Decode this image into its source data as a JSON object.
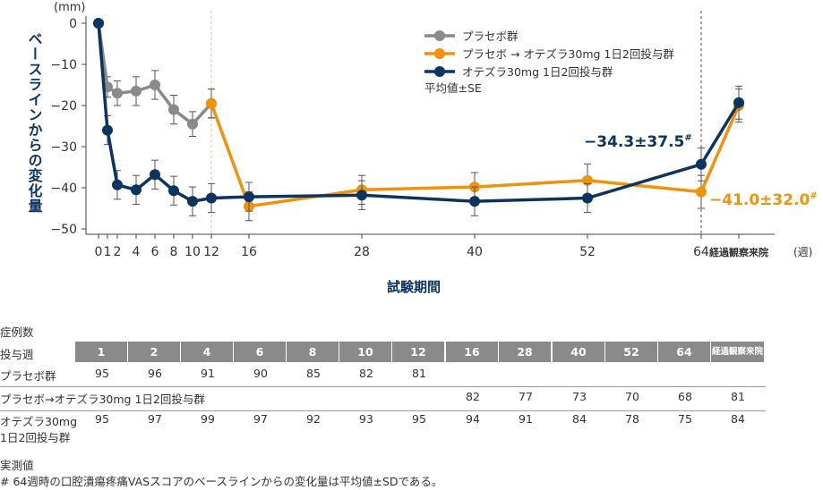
{
  "chart_data": {
    "type": "line",
    "y_unit": "(mm)",
    "x_unit": "(週)",
    "ylabel": "ベースラインからの変化量",
    "xlabel": "試験期間",
    "ylim": [
      -50,
      0
    ],
    "yticks": [
      "0",
      "−10",
      "−20",
      "−30",
      "−40",
      "−50"
    ],
    "xticks": [
      "0",
      "1",
      "2",
      "4",
      "6",
      "8",
      "10",
      "12",
      "16",
      "28",
      "40",
      "52",
      "64",
      "経過観察来院"
    ],
    "legend": {
      "placement": "top-right",
      "note": "平均値±SE"
    },
    "series": [
      {
        "name": "プラセボ群",
        "color": "#8a8a8a",
        "x": [
          "0",
          "1",
          "2",
          "4",
          "6",
          "8",
          "10",
          "12"
        ],
        "y": [
          0,
          -15.5,
          -17,
          -16.5,
          -15,
          -21,
          -24.5,
          -19.5
        ],
        "err": [
          0,
          2.5,
          3,
          3.5,
          3.5,
          3.5,
          3,
          3.5
        ]
      },
      {
        "name": "プラセボ → オテズラ30mg 1日2回投与群",
        "color": "#f0920a",
        "x": [
          "12",
          "16",
          "28",
          "40",
          "52",
          "64",
          "経過観察来院"
        ],
        "y": [
          -19.5,
          -44.5,
          -40.5,
          -39.8,
          -38.2,
          -41,
          -20
        ],
        "err": [
          3.5,
          3.5,
          3.5,
          3.5,
          4,
          4,
          4
        ]
      },
      {
        "name": "オテズラ30mg 1日2回投与群",
        "color": "#0d3460",
        "x": [
          "0",
          "1",
          "2",
          "4",
          "6",
          "8",
          "10",
          "12",
          "16",
          "28",
          "40",
          "52",
          "64",
          "経過観察来院"
        ],
        "y": [
          0,
          -26,
          -39.3,
          -40.5,
          -36.8,
          -40.7,
          -43.3,
          -42.5,
          -42.2,
          -41.8,
          -43.3,
          -42.5,
          -34.3,
          -19.3
        ],
        "err": [
          0,
          3.5,
          3.5,
          3.5,
          3.5,
          3.5,
          3.5,
          3.5,
          3.5,
          3.5,
          3.5,
          3.5,
          4,
          4
        ]
      }
    ],
    "annotations": [
      {
        "text": "−34.3±37.5",
        "sup": "#",
        "series": "オテズラ30mg 1日2回投与群"
      },
      {
        "text": "−41.0±32.0",
        "sup": "#",
        "series": "プラセボ → オテズラ30mg 1日2回投与群"
      }
    ]
  },
  "table": {
    "title": "症例数",
    "header_label": "投与週",
    "weeks": [
      "1",
      "2",
      "4",
      "6",
      "8",
      "10",
      "12",
      "16",
      "28",
      "40",
      "52",
      "64",
      "経過観察来院"
    ],
    "rows": [
      {
        "label": "プラセボ群",
        "values": [
          "95",
          "96",
          "91",
          "90",
          "85",
          "82",
          "81",
          "",
          "",
          "",
          "",
          "",
          ""
        ]
      },
      {
        "label": "プラセボ→オテズラ30mg 1日2回投与群",
        "values": [
          "",
          "",
          "",
          "",
          "",
          "",
          "",
          "82",
          "77",
          "73",
          "70",
          "68",
          "81"
        ]
      },
      {
        "label_line1": "オテズラ30mg",
        "label_line2": "1日2回投与群",
        "values": [
          "95",
          "97",
          "99",
          "97",
          "92",
          "93",
          "95",
          "94",
          "91",
          "84",
          "78",
          "75",
          "84"
        ]
      }
    ]
  },
  "footnotes": {
    "line1": "実測値",
    "line2": "# 64週時の口腔潰瘍疼痛VASスコアのベースラインからの変化量は平均値±SDである。"
  }
}
